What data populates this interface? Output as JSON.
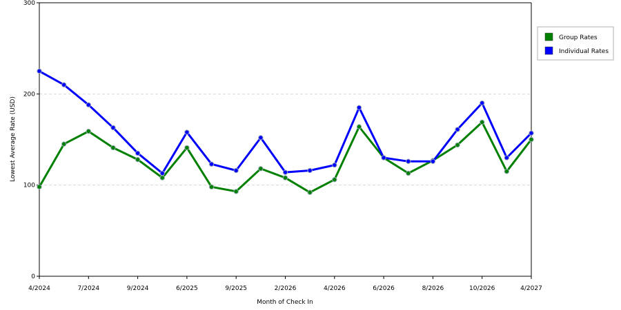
{
  "chart_data": {
    "type": "line",
    "title": "",
    "xlabel": "Month of Check In",
    "ylabel": "Lowest Average Rate (USD)",
    "ylim": [
      0,
      300
    ],
    "yticks": [
      0,
      100,
      200,
      300
    ],
    "grid": true,
    "legend_position": "top-right",
    "x_tick_labels": [
      "4/2024",
      "7/2024",
      "9/2024",
      "6/2025",
      "9/2025",
      "2/2026",
      "4/2026",
      "6/2026",
      "8/2026",
      "10/2026",
      "4/2027"
    ],
    "series": [
      {
        "name": "Group Rates",
        "color": "#008000",
        "values": [
          98,
          145,
          159,
          141,
          128,
          108,
          141,
          98,
          93,
          118,
          108,
          92,
          106,
          164,
          130,
          113,
          127,
          144,
          169,
          115,
          150
        ]
      },
      {
        "name": "Individual Rates",
        "color": "#0000ff",
        "values": [
          225,
          210,
          188,
          163,
          135,
          113,
          158,
          123,
          116,
          152,
          114,
          116,
          122,
          185,
          130,
          126,
          126,
          161,
          190,
          130,
          157
        ]
      }
    ]
  }
}
